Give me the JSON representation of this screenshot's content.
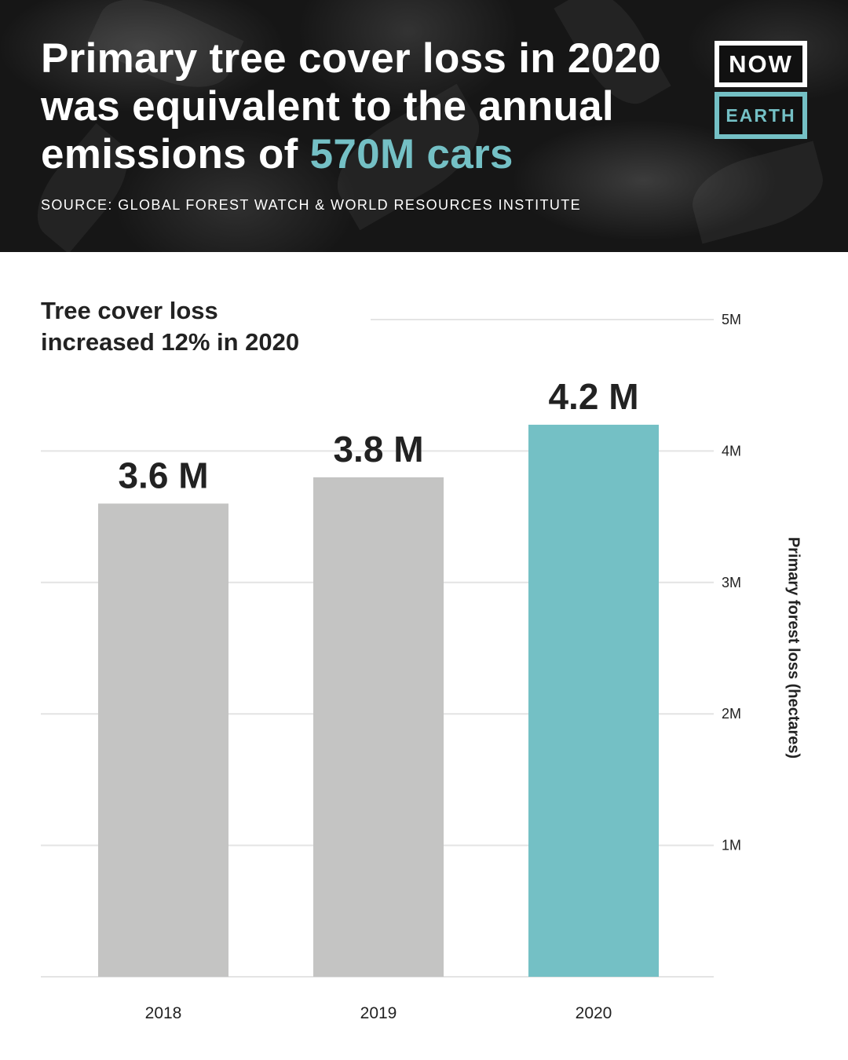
{
  "header": {
    "title_line1": "Primary tree cover loss in 2020",
    "title_line2": "was equivalent to the annual",
    "title_line3_prefix": "emissions of ",
    "title_line3_accent": "570M cars",
    "source": "SOURCE: GLOBAL FOREST WATCH & WORLD RESOURCES INSTITUTE",
    "accent_color": "#74c0c5"
  },
  "logo": {
    "top": "NOW",
    "bottom": "EARTH"
  },
  "chart_data": {
    "type": "bar",
    "title_line1": "Tree cover loss",
    "title_line2": "increased 12% in 2020",
    "categories": [
      "2018",
      "2019",
      "2020"
    ],
    "values": [
      3.6,
      3.8,
      4.2
    ],
    "data_labels": [
      "3.6 M",
      "3.8 M",
      "4.2 M"
    ],
    "bar_colors": [
      "#c4c4c3",
      "#c4c4c3",
      "#74c0c5"
    ],
    "ylabel": "Primary forest loss (hectares)",
    "ylim": [
      0,
      5
    ],
    "yticks": [
      1,
      2,
      3,
      4,
      5
    ],
    "ytick_labels": [
      "1M",
      "2M",
      "3M",
      "4M",
      "5M"
    ],
    "y_axis_side": "right",
    "grid": true
  }
}
